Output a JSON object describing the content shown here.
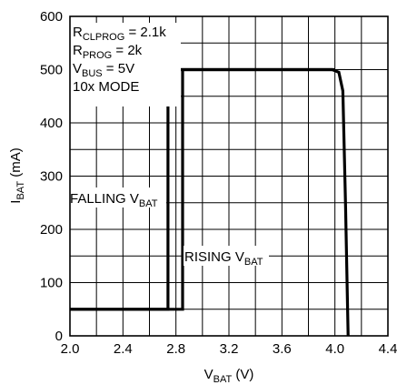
{
  "chart_data": {
    "type": "line",
    "title": "",
    "xlabel": {
      "main": "V",
      "sub": "BAT",
      "unit": " (V)"
    },
    "ylabel": {
      "main": "I",
      "sub": "BAT",
      "unit": " (mA)"
    },
    "xlim": [
      2.0,
      4.4
    ],
    "ylim": [
      0,
      600
    ],
    "x_ticks": [
      "2.0",
      "2.4",
      "2.8",
      "3.2",
      "3.6",
      "4.0",
      "4.4"
    ],
    "y_ticks": [
      "0",
      "100",
      "200",
      "300",
      "400",
      "500",
      "600"
    ],
    "grid": true,
    "conditions": [
      {
        "main": "R",
        "sub": "CLPROG",
        "rest": " = 2.1k"
      },
      {
        "main": "R",
        "sub": "PROG",
        "rest": " = 2k"
      },
      {
        "main": "V",
        "sub": "BUS",
        "rest": " = 5V"
      },
      {
        "main": "10x MODE",
        "sub": "",
        "rest": ""
      }
    ],
    "annotations": {
      "falling": {
        "main": "FALLING V",
        "sub": "BAT"
      },
      "rising": {
        "main": "RISING V",
        "sub": "BAT"
      }
    },
    "series": [
      {
        "x": [
          2.0,
          2.74,
          2.74,
          3.98,
          4.03,
          4.06,
          4.08,
          4.1
        ],
        "y": [
          50,
          50,
          500,
          500,
          495,
          460,
          250,
          0
        ]
      },
      {
        "x": [
          2.0,
          2.85,
          2.85,
          4.0
        ],
        "y": [
          50,
          50,
          500,
          500
        ]
      }
    ]
  }
}
